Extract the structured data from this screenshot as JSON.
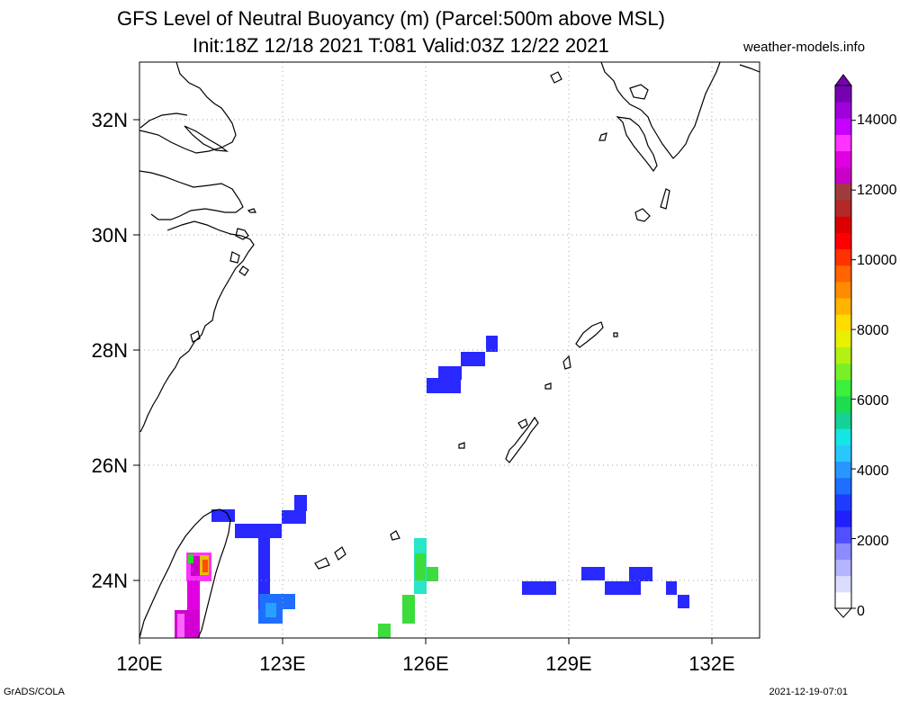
{
  "title_line1": "GFS Level of Neutral Buoyancy (m) (Parcel:500m above MSL)",
  "title_line2": "Init:18Z 12/18 2021 T:081 Valid:03Z 12/22 2021",
  "site": "weather-models.info",
  "footer_left": "GrADS/COLA",
  "footer_right": "2021-12-19-07:01",
  "map": {
    "lon_range": [
      120,
      133
    ],
    "lat_range": [
      23,
      33
    ],
    "lon_ticks": [
      "120E",
      "123E",
      "126E",
      "129E",
      "132E"
    ],
    "lat_ticks": [
      "24N",
      "26N",
      "28N",
      "30N",
      "32N"
    ],
    "grid": "dotted"
  },
  "colorbar": {
    "labels": [
      "0",
      "2000",
      "4000",
      "6000",
      "8000",
      "10000",
      "12000",
      "14000"
    ],
    "colors": [
      "#ffffff",
      "#dcdcff",
      "#b4b4ff",
      "#8c8cff",
      "#5050ff",
      "#2020ff",
      "#1e3cff",
      "#1e6eff",
      "#2896ff",
      "#28c8ff",
      "#14e6e6",
      "#14d296",
      "#1edc50",
      "#3cf03c",
      "#78f028",
      "#b4f014",
      "#e6f000",
      "#ffdc00",
      "#ffb400",
      "#ff8c00",
      "#ff6400",
      "#ff3200",
      "#ff0000",
      "#dc0000",
      "#b42828",
      "#a03c3c",
      "#c800c8",
      "#e100e1",
      "#ff32ff",
      "#c800ff",
      "#a000dc",
      "#7800b4"
    ],
    "min": 0,
    "max": 15000
  }
}
